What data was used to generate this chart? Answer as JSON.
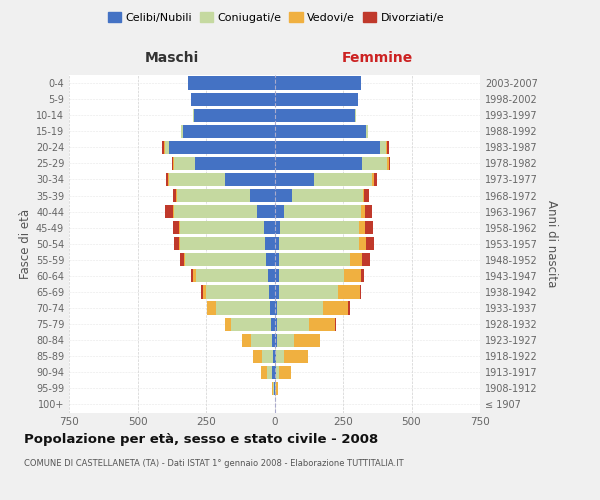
{
  "age_groups": [
    "100+",
    "95-99",
    "90-94",
    "85-89",
    "80-84",
    "75-79",
    "70-74",
    "65-69",
    "60-64",
    "55-59",
    "50-54",
    "45-49",
    "40-44",
    "35-39",
    "30-34",
    "25-29",
    "20-24",
    "15-19",
    "10-14",
    "5-9",
    "0-4"
  ],
  "birth_years": [
    "≤ 1907",
    "1908-1912",
    "1913-1917",
    "1918-1922",
    "1923-1927",
    "1928-1932",
    "1933-1937",
    "1938-1942",
    "1943-1947",
    "1948-1952",
    "1953-1957",
    "1958-1962",
    "1963-1967",
    "1968-1972",
    "1973-1977",
    "1978-1982",
    "1983-1987",
    "1988-1992",
    "1993-1997",
    "1998-2002",
    "2003-2007"
  ],
  "male_celibe": [
    0,
    2,
    8,
    5,
    10,
    12,
    15,
    20,
    25,
    30,
    35,
    40,
    65,
    90,
    180,
    290,
    385,
    335,
    295,
    305,
    315
  ],
  "male_coniugato": [
    0,
    3,
    20,
    40,
    75,
    145,
    200,
    230,
    260,
    295,
    310,
    305,
    300,
    265,
    205,
    75,
    15,
    5,
    3,
    0,
    0
  ],
  "male_vedovo": [
    0,
    3,
    22,
    35,
    35,
    25,
    32,
    12,
    12,
    5,
    5,
    5,
    5,
    5,
    5,
    5,
    5,
    0,
    0,
    0,
    0
  ],
  "male_divorziato": [
    0,
    0,
    0,
    0,
    0,
    0,
    0,
    5,
    8,
    15,
    18,
    22,
    28,
    12,
    5,
    5,
    5,
    0,
    0,
    0,
    0
  ],
  "female_celibe": [
    0,
    2,
    5,
    5,
    10,
    10,
    10,
    15,
    15,
    15,
    15,
    20,
    35,
    65,
    145,
    320,
    385,
    335,
    295,
    305,
    315
  ],
  "female_coniugata": [
    0,
    3,
    12,
    28,
    62,
    115,
    168,
    215,
    238,
    262,
    292,
    288,
    282,
    258,
    212,
    92,
    22,
    5,
    3,
    0,
    0
  ],
  "female_vedova": [
    3,
    8,
    45,
    88,
    95,
    95,
    92,
    82,
    62,
    42,
    28,
    22,
    12,
    5,
    5,
    5,
    5,
    0,
    0,
    0,
    0
  ],
  "female_divorziata": [
    0,
    0,
    0,
    0,
    0,
    5,
    5,
    5,
    12,
    28,
    28,
    28,
    28,
    18,
    12,
    5,
    5,
    0,
    0,
    0,
    0
  ],
  "color_celibe": "#4472c4",
  "color_coniugato": "#c5d9a0",
  "color_vedovo": "#f0b040",
  "color_divorziato": "#c0392b",
  "title": "Popolazione per età, sesso e stato civile - 2008",
  "subtitle": "COMUNE DI CASTELLANETA (TA) - Dati ISTAT 1° gennaio 2008 - Elaborazione TUTTITALIA.IT",
  "xlabel_left": "Maschi",
  "xlabel_right": "Femmine",
  "ylabel_left": "Fasce di età",
  "ylabel_right": "Anni di nascita",
  "xlim": 750,
  "bg_color": "#f0f0f0",
  "plot_bg": "#ffffff",
  "legend_labels": [
    "Celibi/Nubili",
    "Coniugati/e",
    "Vedovi/e",
    "Divorziati/e"
  ]
}
